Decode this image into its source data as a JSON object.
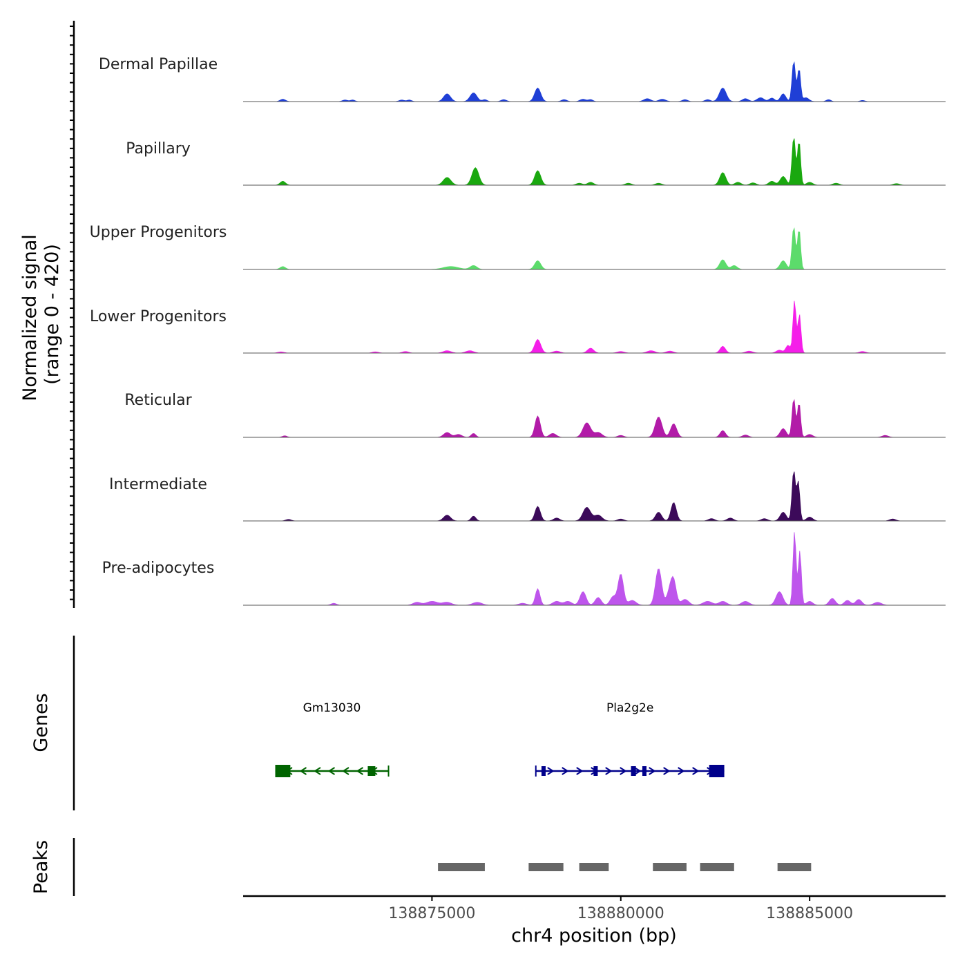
{
  "chart_data": {
    "type": "area",
    "title": "",
    "ylabel_line1": "Normalized signal",
    "ylabel_line2": "(range 0 - 420)",
    "ylim": [
      0,
      420
    ],
    "xlabel": "chr4 position (bp)",
    "xlim": [
      138870000,
      138888600
    ],
    "xticks": [
      {
        "value": 138875000,
        "label": "138875000"
      },
      {
        "value": 138880000,
        "label": "138880000"
      },
      {
        "value": 138885000,
        "label": "138885000"
      }
    ],
    "tracks": [
      {
        "name": "Dermal Papillae",
        "color": "#1f3fd6",
        "peaks": [
          [
            138871050,
            12,
            70
          ],
          [
            138872700,
            8,
            70
          ],
          [
            138872900,
            8,
            60
          ],
          [
            138874200,
            8,
            70
          ],
          [
            138874400,
            8,
            60
          ],
          [
            138875400,
            40,
            90
          ],
          [
            138876100,
            45,
            90
          ],
          [
            138876400,
            10,
            60
          ],
          [
            138876900,
            10,
            70
          ],
          [
            138877800,
            70,
            80
          ],
          [
            138878500,
            10,
            70
          ],
          [
            138879000,
            12,
            80
          ],
          [
            138879200,
            10,
            60
          ],
          [
            138880700,
            15,
            90
          ],
          [
            138881100,
            12,
            90
          ],
          [
            138881700,
            10,
            70
          ],
          [
            138882300,
            10,
            70
          ],
          [
            138882700,
            70,
            90
          ],
          [
            138883300,
            15,
            80
          ],
          [
            138883700,
            20,
            90
          ],
          [
            138884000,
            18,
            70
          ],
          [
            138884300,
            40,
            70
          ],
          [
            138884580,
            210,
            45
          ],
          [
            138884720,
            170,
            40
          ],
          [
            138884900,
            20,
            80
          ],
          [
            138885500,
            10,
            60
          ],
          [
            138886400,
            6,
            60
          ]
        ]
      },
      {
        "name": "Papillary",
        "color": "#1aa80f",
        "peaks": [
          [
            138871050,
            20,
            70
          ],
          [
            138875400,
            40,
            100
          ],
          [
            138876150,
            90,
            90
          ],
          [
            138877800,
            75,
            80
          ],
          [
            138878900,
            10,
            80
          ],
          [
            138879200,
            15,
            80
          ],
          [
            138880200,
            10,
            80
          ],
          [
            138881000,
            10,
            80
          ],
          [
            138882700,
            65,
            80
          ],
          [
            138883100,
            15,
            80
          ],
          [
            138883500,
            12,
            80
          ],
          [
            138884000,
            20,
            80
          ],
          [
            138884300,
            45,
            80
          ],
          [
            138884580,
            250,
            45
          ],
          [
            138884720,
            230,
            40
          ],
          [
            138885000,
            15,
            80
          ],
          [
            138885700,
            10,
            80
          ],
          [
            138887300,
            8,
            80
          ]
        ]
      },
      {
        "name": "Upper Progenitors",
        "color": "#5cdb6b",
        "peaks": [
          [
            138871050,
            15,
            70
          ],
          [
            138875500,
            15,
            200
          ],
          [
            138876100,
            20,
            90
          ],
          [
            138877800,
            45,
            80
          ],
          [
            138882700,
            50,
            80
          ],
          [
            138883000,
            20,
            80
          ],
          [
            138884300,
            45,
            80
          ],
          [
            138884580,
            220,
            45
          ],
          [
            138884720,
            210,
            40
          ]
        ]
      },
      {
        "name": "Lower Progenitors",
        "color": "#f51ee9",
        "peaks": [
          [
            138871000,
            6,
            80
          ],
          [
            138873500,
            6,
            80
          ],
          [
            138874300,
            8,
            80
          ],
          [
            138875400,
            12,
            100
          ],
          [
            138876000,
            12,
            100
          ],
          [
            138877800,
            70,
            80
          ],
          [
            138878300,
            10,
            90
          ],
          [
            138879200,
            25,
            80
          ],
          [
            138880000,
            8,
            90
          ],
          [
            138880800,
            12,
            100
          ],
          [
            138881300,
            10,
            90
          ],
          [
            138882700,
            35,
            70
          ],
          [
            138883400,
            10,
            90
          ],
          [
            138884200,
            15,
            80
          ],
          [
            138884430,
            40,
            60
          ],
          [
            138884600,
            270,
            40
          ],
          [
            138884730,
            200,
            40
          ],
          [
            138886400,
            8,
            80
          ]
        ]
      },
      {
        "name": "Reticular",
        "color": "#b21ba8",
        "peaks": [
          [
            138871100,
            8,
            60
          ],
          [
            138875400,
            25,
            90
          ],
          [
            138875700,
            15,
            90
          ],
          [
            138876100,
            20,
            60
          ],
          [
            138877800,
            110,
            70
          ],
          [
            138878200,
            20,
            90
          ],
          [
            138879100,
            75,
            100
          ],
          [
            138879400,
            25,
            100
          ],
          [
            138880000,
            10,
            80
          ],
          [
            138881000,
            105,
            90
          ],
          [
            138881400,
            70,
            80
          ],
          [
            138882700,
            35,
            70
          ],
          [
            138883300,
            12,
            80
          ],
          [
            138884300,
            45,
            80
          ],
          [
            138884580,
            200,
            45
          ],
          [
            138884720,
            180,
            40
          ],
          [
            138885000,
            15,
            80
          ],
          [
            138887000,
            10,
            80
          ]
        ]
      },
      {
        "name": "Intermediate",
        "color": "#3c0a5a",
        "peaks": [
          [
            138871200,
            8,
            70
          ],
          [
            138875400,
            30,
            90
          ],
          [
            138876100,
            25,
            60
          ],
          [
            138877800,
            75,
            70
          ],
          [
            138878300,
            15,
            80
          ],
          [
            138879100,
            70,
            100
          ],
          [
            138879400,
            30,
            100
          ],
          [
            138880000,
            10,
            80
          ],
          [
            138881000,
            45,
            80
          ],
          [
            138881400,
            95,
            70
          ],
          [
            138882400,
            12,
            80
          ],
          [
            138882900,
            15,
            80
          ],
          [
            138883800,
            12,
            80
          ],
          [
            138884300,
            45,
            80
          ],
          [
            138884580,
            260,
            45
          ],
          [
            138884700,
            200,
            40
          ],
          [
            138885000,
            20,
            80
          ],
          [
            138887200,
            10,
            80
          ]
        ]
      },
      {
        "name": "Pre-adipocytes",
        "color": "#be55ec",
        "peaks": [
          [
            138872400,
            10,
            70
          ],
          [
            138874600,
            15,
            100
          ],
          [
            138875000,
            20,
            150
          ],
          [
            138875400,
            15,
            120
          ],
          [
            138876200,
            15,
            120
          ],
          [
            138877400,
            10,
            100
          ],
          [
            138877800,
            85,
            60
          ],
          [
            138878300,
            20,
            100
          ],
          [
            138878600,
            20,
            100
          ],
          [
            138879000,
            70,
            80
          ],
          [
            138879400,
            40,
            80
          ],
          [
            138879800,
            45,
            80
          ],
          [
            138880000,
            160,
            70
          ],
          [
            138880300,
            25,
            100
          ],
          [
            138881000,
            190,
            80
          ],
          [
            138881300,
            70,
            80
          ],
          [
            138881400,
            110,
            70
          ],
          [
            138881700,
            30,
            100
          ],
          [
            138882300,
            20,
            120
          ],
          [
            138882700,
            20,
            100
          ],
          [
            138883300,
            20,
            100
          ],
          [
            138884200,
            70,
            90
          ],
          [
            138884600,
            380,
            40
          ],
          [
            138884740,
            280,
            40
          ],
          [
            138885000,
            20,
            80
          ],
          [
            138885600,
            35,
            80
          ],
          [
            138886000,
            25,
            80
          ],
          [
            138886300,
            30,
            80
          ],
          [
            138886800,
            15,
            100
          ]
        ]
      }
    ],
    "genes_label": "Genes",
    "genes": [
      {
        "name": "Gm13030",
        "color": "#006400",
        "strand": "-",
        "start": 138870850,
        "end": 138873850,
        "exons": [
          [
            138870850,
            138871250
          ],
          [
            138873300,
            138873500
          ]
        ]
      },
      {
        "name": "Pla2g2e",
        "color": "#00008b",
        "strand": "+",
        "start": 138877750,
        "end": 138882740,
        "exons": [
          [
            138877900,
            138878000
          ],
          [
            138879280,
            138879380
          ],
          [
            138880270,
            138880400
          ],
          [
            138880570,
            138880670
          ],
          [
            138882340,
            138882740
          ]
        ]
      }
    ],
    "peaks_label": "Peaks",
    "peak_regions": [
      [
        138875160,
        138876400
      ],
      [
        138877560,
        138878480
      ],
      [
        138878900,
        138879680
      ],
      [
        138880850,
        138881740
      ],
      [
        138882100,
        138883000
      ],
      [
        138884150,
        138885040
      ]
    ]
  }
}
